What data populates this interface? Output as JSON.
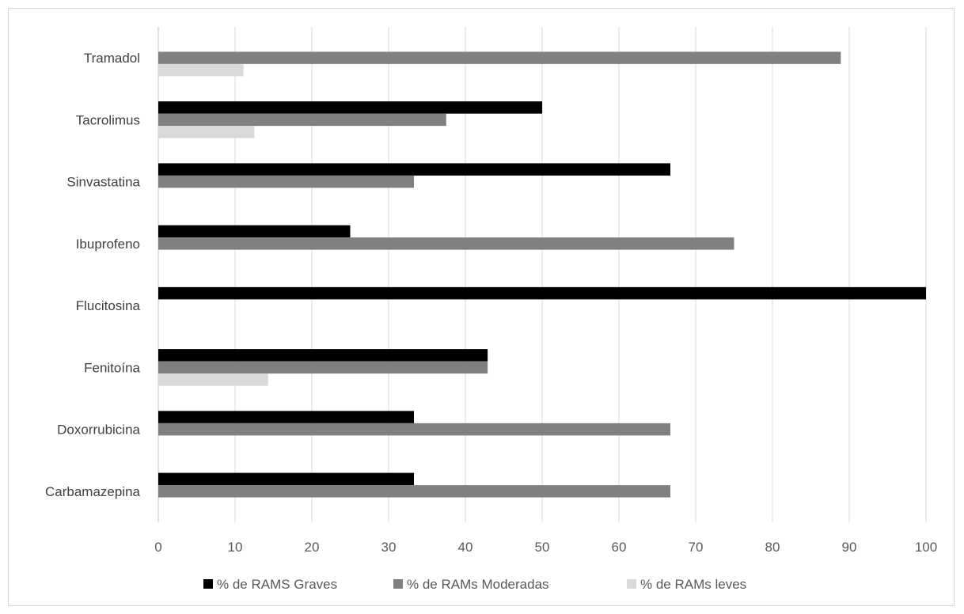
{
  "chart_data": {
    "type": "bar",
    "orientation": "horizontal",
    "categories": [
      "Carbamazepina",
      "Doxorrubicina",
      "Fenitoína",
      "Flucitosina",
      "Ibuprofeno",
      "Sinvastatina",
      "Tacrolimus",
      "Tramadol"
    ],
    "series": [
      {
        "name": "% de RAMS Graves",
        "color": "#000000",
        "values": [
          33.3,
          33.3,
          42.9,
          100,
          25,
          66.7,
          50,
          0
        ]
      },
      {
        "name": "% de RAMs Moderadas",
        "color": "#808080",
        "values": [
          66.7,
          66.7,
          42.9,
          0,
          75,
          33.3,
          37.5,
          88.9
        ]
      },
      {
        "name": "% de RAMs leves",
        "color": "#d9d9d9",
        "values": [
          0,
          0,
          14.3,
          0,
          0,
          0,
          12.5,
          11.1
        ]
      }
    ],
    "xticks": [
      "0",
      "10",
      "20",
      "30",
      "40",
      "50",
      "60",
      "70",
      "80",
      "90",
      "100"
    ],
    "xlim": [
      0,
      100
    ],
    "grid": "vertical",
    "legend": "bottom"
  }
}
